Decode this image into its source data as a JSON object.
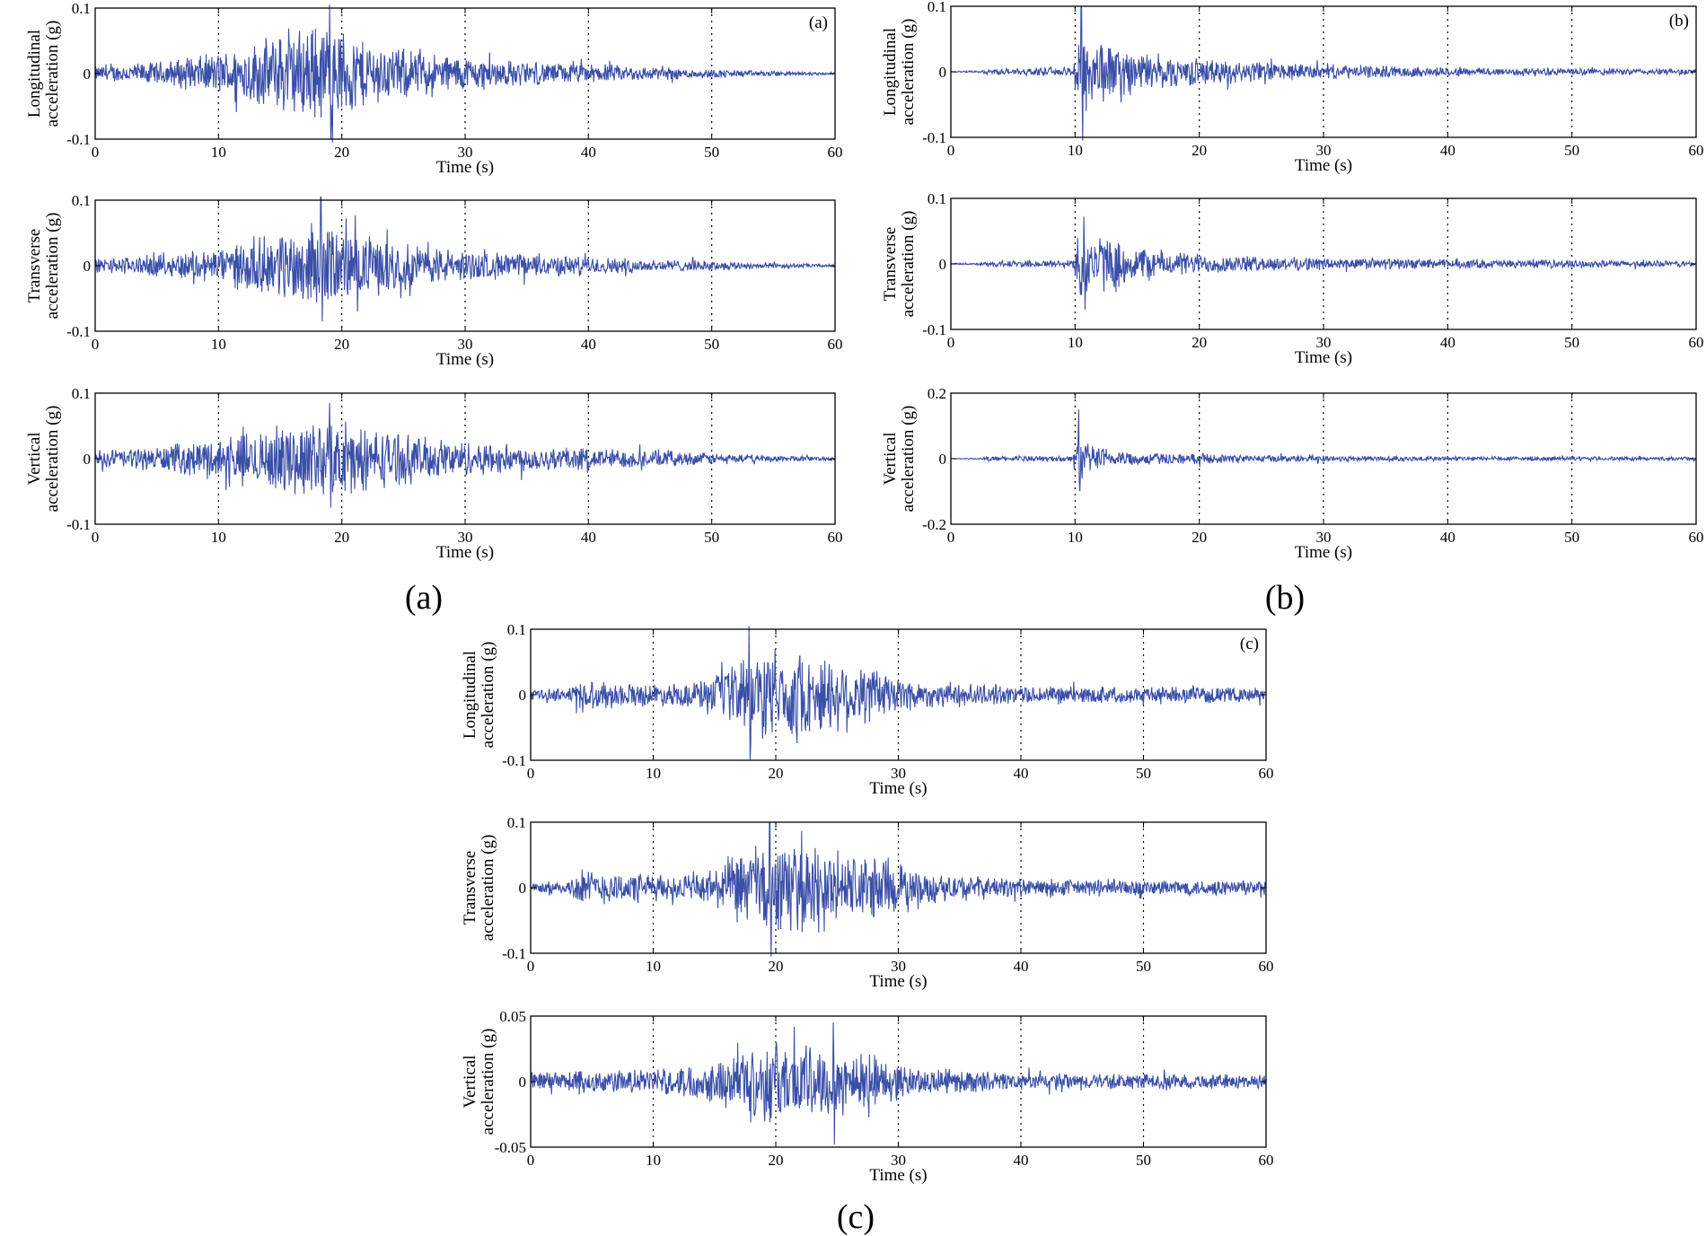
{
  "chart_data": [
    {
      "panel": "(a)",
      "type": "line",
      "title": "",
      "caption": "(a)",
      "xlabel": "Time (s)",
      "xlim": [
        0,
        60
      ],
      "xticks": [
        "0",
        "10",
        "20",
        "30",
        "40",
        "50",
        "60"
      ],
      "line_color": "#3a4fa8",
      "subplots": [
        {
          "name": "longitudinal",
          "ylabel_line1": "Longitudinal",
          "ylabel_line2": "acceleration (g)",
          "ylim": [
            -0.1,
            0.1
          ],
          "yticks": [
            {
              "v": 0.1,
              "t": "0.1"
            },
            {
              "v": 0,
              "t": "0"
            },
            {
              "v": -0.1,
              "t": "-0.1"
            }
          ],
          "tag": "(a)",
          "envelope": [
            [
              0,
              0.012
            ],
            [
              5,
              0.02
            ],
            [
              10,
              0.035
            ],
            [
              14,
              0.06
            ],
            [
              17,
              0.08
            ],
            [
              19,
              0.09
            ],
            [
              20,
              0.075
            ],
            [
              23,
              0.05
            ],
            [
              27,
              0.035
            ],
            [
              35,
              0.02
            ],
            [
              45,
              0.012
            ],
            [
              52,
              0.006
            ],
            [
              60,
              0.002
            ]
          ],
          "peak_max": 0.11,
          "peak_min": -0.1,
          "peak_t": 19
        },
        {
          "name": "transverse",
          "ylabel_line1": "Transverse",
          "ylabel_line2": "acceleration (g)",
          "ylim": [
            -0.1,
            0.1
          ],
          "yticks": [
            {
              "v": 0.1,
              "t": "0.1"
            },
            {
              "v": 0,
              "t": "0"
            },
            {
              "v": -0.1,
              "t": "-0.1"
            }
          ],
          "tag": "",
          "envelope": [
            [
              0,
              0.012
            ],
            [
              5,
              0.018
            ],
            [
              10,
              0.03
            ],
            [
              14,
              0.05
            ],
            [
              17,
              0.07
            ],
            [
              19,
              0.07
            ],
            [
              21,
              0.055
            ],
            [
              25,
              0.04
            ],
            [
              30,
              0.025
            ],
            [
              40,
              0.015
            ],
            [
              50,
              0.008
            ],
            [
              60,
              0.002
            ]
          ],
          "peak_max": 0.11,
          "peak_min": -0.085,
          "peak_t": 18.3
        },
        {
          "name": "vertical",
          "ylabel_line1": "Vertical",
          "ylabel_line2": "acceleration (g)",
          "ylim": [
            -0.1,
            0.1
          ],
          "yticks": [
            {
              "v": 0.1,
              "t": "0.1"
            },
            {
              "v": 0,
              "t": "0"
            },
            {
              "v": -0.1,
              "t": "-0.1"
            }
          ],
          "tag": "",
          "envelope": [
            [
              0,
              0.015
            ],
            [
              5,
              0.02
            ],
            [
              10,
              0.035
            ],
            [
              14,
              0.05
            ],
            [
              17,
              0.065
            ],
            [
              20,
              0.06
            ],
            [
              23,
              0.05
            ],
            [
              27,
              0.035
            ],
            [
              35,
              0.022
            ],
            [
              45,
              0.015
            ],
            [
              52,
              0.007
            ],
            [
              60,
              0.003
            ]
          ],
          "peak_max": 0.085,
          "peak_min": -0.075,
          "peak_t": 19
        }
      ]
    },
    {
      "panel": "(b)",
      "type": "line",
      "title": "",
      "caption": "(b)",
      "xlabel": "Time (s)",
      "xlim": [
        0,
        60
      ],
      "xticks": [
        "0",
        "10",
        "20",
        "30",
        "40",
        "50",
        "60"
      ],
      "line_color": "#3a4fa8",
      "subplots": [
        {
          "name": "longitudinal",
          "ylabel_line1": "Longitudinal",
          "ylabel_line2": "acceleration (g)",
          "ylim": [
            -0.1,
            0.1
          ],
          "yticks": [
            {
              "v": 0.1,
              "t": "0.1"
            },
            {
              "v": 0,
              "t": "0"
            },
            {
              "v": -0.1,
              "t": "-0.1"
            }
          ],
          "tag": "(b)",
          "envelope": [
            [
              0,
              0.001
            ],
            [
              2.5,
              0.002
            ],
            [
              3,
              0.005
            ],
            [
              9.8,
              0.007
            ],
            [
              10.3,
              0.08
            ],
            [
              11,
              0.07
            ],
            [
              13,
              0.045
            ],
            [
              16,
              0.03
            ],
            [
              20,
              0.022
            ],
            [
              30,
              0.012
            ],
            [
              40,
              0.008
            ],
            [
              50,
              0.006
            ],
            [
              60,
              0.005
            ]
          ],
          "peak_max": 0.1,
          "peak_min": -0.11,
          "peak_t": 10.5
        },
        {
          "name": "transverse",
          "ylabel_line1": "Transverse",
          "ylabel_line2": "acceleration (g)",
          "ylim": [
            -0.1,
            0.1
          ],
          "yticks": [
            {
              "v": 0.1,
              "t": "0.1"
            },
            {
              "v": 0,
              "t": "0"
            },
            {
              "v": -0.1,
              "t": "-0.1"
            }
          ],
          "tag": "",
          "envelope": [
            [
              0,
              0.001
            ],
            [
              2.5,
              0.002
            ],
            [
              3,
              0.005
            ],
            [
              9.8,
              0.007
            ],
            [
              10.3,
              0.06
            ],
            [
              11,
              0.055
            ],
            [
              14,
              0.035
            ],
            [
              18,
              0.02
            ],
            [
              25,
              0.012
            ],
            [
              40,
              0.008
            ],
            [
              60,
              0.005
            ]
          ],
          "peak_max": 0.072,
          "peak_min": -0.07,
          "peak_t": 10.7
        },
        {
          "name": "vertical",
          "ylabel_line1": "Vertical",
          "ylabel_line2": "acceleration (g)",
          "ylim": [
            -0.2,
            0.2
          ],
          "yticks": [
            {
              "v": 0.2,
              "t": "0.2"
            },
            {
              "v": 0,
              "t": "0"
            },
            {
              "v": -0.2,
              "t": "-0.2"
            }
          ],
          "tag": "",
          "envelope": [
            [
              0,
              0.001
            ],
            [
              2.5,
              0.002
            ],
            [
              3,
              0.008
            ],
            [
              9.8,
              0.01
            ],
            [
              10.2,
              0.1
            ],
            [
              11,
              0.05
            ],
            [
              13,
              0.03
            ],
            [
              16,
              0.02
            ],
            [
              25,
              0.012
            ],
            [
              40,
              0.008
            ],
            [
              60,
              0.006
            ]
          ],
          "peak_max": 0.15,
          "peak_min": -0.1,
          "peak_t": 10.3
        }
      ]
    },
    {
      "panel": "(c)",
      "type": "line",
      "title": "",
      "caption": "(c)",
      "xlabel": "Time (s)",
      "xlim": [
        0,
        60
      ],
      "xticks": [
        "0",
        "10",
        "20",
        "30",
        "40",
        "50",
        "60"
      ],
      "line_color": "#3a4fa8",
      "subplots": [
        {
          "name": "longitudinal",
          "ylabel_line1": "Longitudinal",
          "ylabel_line2": "acceleration (g)",
          "ylim": [
            -0.1,
            0.1
          ],
          "yticks": [
            {
              "v": 0.1,
              "t": "0.1"
            },
            {
              "v": 0,
              "t": "0"
            },
            {
              "v": -0.1,
              "t": "-0.1"
            }
          ],
          "tag": "(c)",
          "envelope": [
            [
              0,
              0.008
            ],
            [
              3,
              0.012
            ],
            [
              4,
              0.025
            ],
            [
              8,
              0.02
            ],
            [
              12,
              0.018
            ],
            [
              15,
              0.03
            ],
            [
              17,
              0.06
            ],
            [
              19,
              0.075
            ],
            [
              22,
              0.07
            ],
            [
              26,
              0.06
            ],
            [
              29,
              0.04
            ],
            [
              32,
              0.022
            ],
            [
              40,
              0.015
            ],
            [
              60,
              0.012
            ]
          ],
          "peak_max": 0.11,
          "peak_min": -0.1,
          "peak_t": 17.8
        },
        {
          "name": "transverse",
          "ylabel_line1": "Transverse",
          "ylabel_line2": "acceleration (g)",
          "ylim": [
            -0.1,
            0.1
          ],
          "yticks": [
            {
              "v": 0.1,
              "t": "0.1"
            },
            {
              "v": 0,
              "t": "0"
            },
            {
              "v": -0.1,
              "t": "-0.1"
            }
          ],
          "tag": "",
          "envelope": [
            [
              0,
              0.008
            ],
            [
              3,
              0.012
            ],
            [
              4,
              0.03
            ],
            [
              8,
              0.025
            ],
            [
              12,
              0.02
            ],
            [
              15,
              0.035
            ],
            [
              17,
              0.06
            ],
            [
              19,
              0.08
            ],
            [
              22,
              0.07
            ],
            [
              26,
              0.06
            ],
            [
              29,
              0.05
            ],
            [
              32,
              0.025
            ],
            [
              40,
              0.015
            ],
            [
              60,
              0.013
            ]
          ],
          "peak_max": 0.1,
          "peak_min": -0.105,
          "peak_t": 19.5
        },
        {
          "name": "vertical",
          "ylabel_line1": "Vertical",
          "ylabel_line2": "acceleration (g)",
          "ylim": [
            -0.05,
            0.05
          ],
          "yticks": [
            {
              "v": 0.05,
              "t": "0.05"
            },
            {
              "v": 0,
              "t": "0"
            },
            {
              "v": -0.05,
              "t": "-0.05"
            }
          ],
          "tag": "",
          "envelope": [
            [
              0,
              0.008
            ],
            [
              4,
              0.01
            ],
            [
              10,
              0.01
            ],
            [
              14,
              0.015
            ],
            [
              17,
              0.025
            ],
            [
              19,
              0.035
            ],
            [
              22,
              0.032
            ],
            [
              25,
              0.03
            ],
            [
              28,
              0.022
            ],
            [
              31,
              0.012
            ],
            [
              40,
              0.007
            ],
            [
              60,
              0.006
            ]
          ],
          "peak_max": 0.045,
          "peak_min": -0.048,
          "peak_t": 24.7
        }
      ]
    }
  ]
}
